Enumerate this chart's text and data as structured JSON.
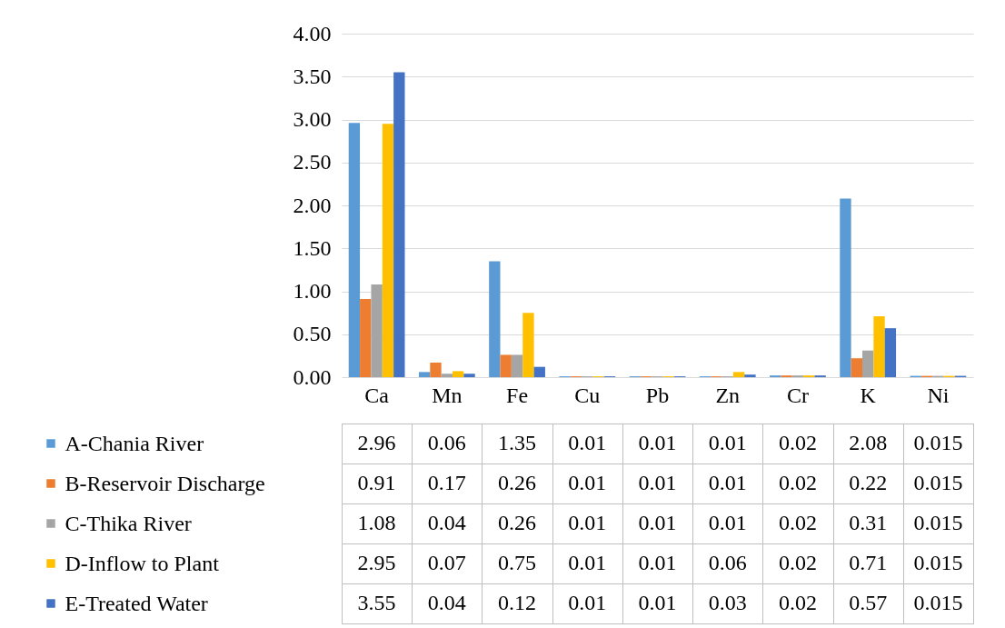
{
  "chart_data": {
    "type": "bar",
    "categories": [
      "Ca",
      "Mn",
      "Fe",
      "Cu",
      "Pb",
      "Zn",
      "Cr",
      "K",
      "Ni"
    ],
    "series": [
      {
        "name": "A-Chania River",
        "color": "#5b9bd5",
        "values": [
          2.96,
          0.06,
          1.35,
          0.01,
          0.01,
          0.01,
          0.02,
          2.08,
          0.015
        ]
      },
      {
        "name": "B-Reservoir Discharge",
        "color": "#ed7d31",
        "values": [
          0.91,
          0.17,
          0.26,
          0.01,
          0.01,
          0.01,
          0.02,
          0.22,
          0.015
        ]
      },
      {
        "name": "C-Thika River",
        "color": "#a5a5a5",
        "values": [
          1.08,
          0.04,
          0.26,
          0.01,
          0.01,
          0.01,
          0.02,
          0.31,
          0.015
        ]
      },
      {
        "name": "D-Inflow to Plant",
        "color": "#ffc000",
        "values": [
          2.95,
          0.07,
          0.75,
          0.01,
          0.01,
          0.06,
          0.02,
          0.71,
          0.015
        ]
      },
      {
        "name": "E-Treated Water",
        "color": "#4472c4",
        "values": [
          3.55,
          0.04,
          0.12,
          0.01,
          0.01,
          0.03,
          0.02,
          0.57,
          0.015
        ]
      }
    ],
    "ylim": [
      0,
      4
    ],
    "yticks": [
      {
        "value": 0,
        "label": "0.00"
      },
      {
        "value": 0.5,
        "label": "0.50"
      },
      {
        "value": 1,
        "label": "1.00"
      },
      {
        "value": 1.5,
        "label": "1.50"
      },
      {
        "value": 2,
        "label": "2.00"
      },
      {
        "value": 2.5,
        "label": "2.50"
      },
      {
        "value": 3,
        "label": "3.00"
      },
      {
        "value": 3.5,
        "label": "3.50"
      },
      {
        "value": 4,
        "label": "4.00"
      }
    ],
    "grid": "y",
    "legend": "bottom",
    "data_labels": true
  }
}
